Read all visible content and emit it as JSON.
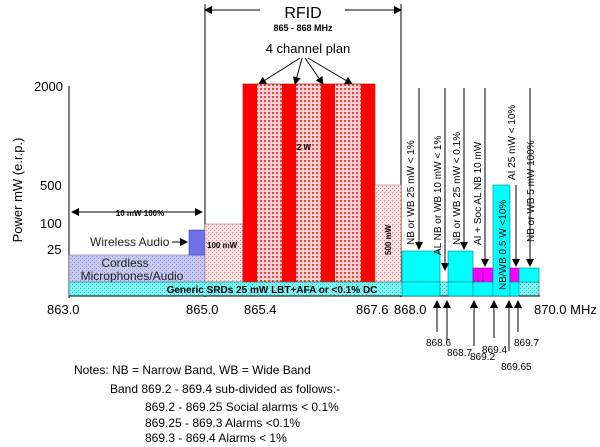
{
  "title": "RFID",
  "subtitle": "865 - 868 MHz",
  "channel_plan_label": "4 channel plan",
  "y_axis_label": "Power mW (e.r.p.)",
  "y_ticks": [
    "2000",
    "500",
    "100",
    "25"
  ],
  "x_ticks": [
    "863.0",
    "865.0",
    "865.4",
    "867.6",
    "868.0",
    "870.0 MHz"
  ],
  "x_ticks_lower": [
    "868.6",
    "868.7",
    "869.2",
    "869.4",
    "869.65",
    "869.7"
  ],
  "band_labels": {
    "ten_mw": "10 mW 100%",
    "wireless_audio": "Wireless Audio",
    "cordless_line1": "Cordless",
    "cordless_line2": "Microphones/Audio",
    "generic_srds": "Generic SRDs  25 mW LBT+AFA or <0.1% DC",
    "hundred_mw": "100 mW",
    "two_w": "2 W",
    "five_hundred_mw": "500 mW"
  },
  "vertical_labels": [
    "NB or WB 25 mW < 1%",
    "AL NB or WB 10 mW < 1%",
    "NB or WB  25 mW < 0.1%",
    "AI + Soc AL NB 10 mW",
    "NB/WB 0.5 W <10%",
    "AI  25 mW < 10%",
    "NB or WB 5 mW 100%"
  ],
  "notes": {
    "line1": "Notes:  NB = Narrow Band, WB = Wide Band",
    "line2": "Band 869.2 - 869.4 sub-divided as follows:-",
    "line3": "869.2 - 869.25 Social alarms < 0.1%",
    "line4": "869.25 - 869.3 Alarms <0.1%",
    "line5": "869.3 - 869.4 Alarms < 1%"
  },
  "colors": {
    "rfid_red": "#ff0000",
    "rfid_hatch": "#e04848",
    "cyan": "#00ffff",
    "lavender": "#b8b8f0",
    "blue": "#6060e0",
    "magenta": "#ff00ff",
    "hatch_rose": "#e89a9a"
  }
}
